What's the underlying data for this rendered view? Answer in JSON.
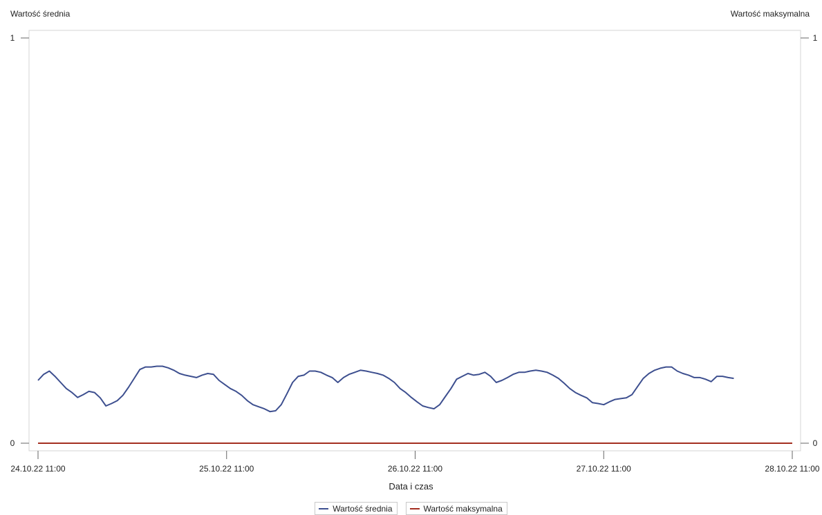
{
  "chart_data": {
    "type": "line",
    "xlabel": "Data i czas",
    "ylabel_left": "Wartość średnia",
    "ylabel_right": "Wartość maksymalna",
    "x_tick_labels": [
      "24.10.22 11:00",
      "25.10.22 11:00",
      "26.10.22 11:00",
      "27.10.22 11:00",
      "28.10.22 11:00"
    ],
    "x_range_days": [
      0,
      4
    ],
    "y_left_ticks": [
      "0",
      "1"
    ],
    "y_right_ticks": [
      "0",
      "1"
    ],
    "ylim": [
      0,
      1
    ],
    "grid": false,
    "legend_position": "bottom",
    "series": [
      {
        "name": "Wartość średnia",
        "color": "#3d4f8f",
        "axis": "left",
        "points": [
          [
            0.0,
            0.155
          ],
          [
            0.03,
            0.17
          ],
          [
            0.06,
            0.178
          ],
          [
            0.09,
            0.165
          ],
          [
            0.12,
            0.15
          ],
          [
            0.15,
            0.135
          ],
          [
            0.18,
            0.125
          ],
          [
            0.21,
            0.113
          ],
          [
            0.24,
            0.12
          ],
          [
            0.27,
            0.128
          ],
          [
            0.3,
            0.125
          ],
          [
            0.33,
            0.112
          ],
          [
            0.36,
            0.092
          ],
          [
            0.39,
            0.098
          ],
          [
            0.42,
            0.105
          ],
          [
            0.45,
            0.118
          ],
          [
            0.48,
            0.138
          ],
          [
            0.51,
            0.16
          ],
          [
            0.54,
            0.182
          ],
          [
            0.57,
            0.188
          ],
          [
            0.6,
            0.188
          ],
          [
            0.63,
            0.19
          ],
          [
            0.66,
            0.19
          ],
          [
            0.69,
            0.186
          ],
          [
            0.72,
            0.18
          ],
          [
            0.75,
            0.172
          ],
          [
            0.78,
            0.168
          ],
          [
            0.81,
            0.165
          ],
          [
            0.84,
            0.162
          ],
          [
            0.87,
            0.168
          ],
          [
            0.9,
            0.172
          ],
          [
            0.93,
            0.17
          ],
          [
            0.96,
            0.155
          ],
          [
            0.99,
            0.145
          ],
          [
            1.02,
            0.135
          ],
          [
            1.05,
            0.128
          ],
          [
            1.08,
            0.118
          ],
          [
            1.11,
            0.105
          ],
          [
            1.14,
            0.095
          ],
          [
            1.17,
            0.09
          ],
          [
            1.2,
            0.085
          ],
          [
            1.23,
            0.078
          ],
          [
            1.26,
            0.08
          ],
          [
            1.29,
            0.095
          ],
          [
            1.32,
            0.122
          ],
          [
            1.35,
            0.15
          ],
          [
            1.38,
            0.165
          ],
          [
            1.41,
            0.168
          ],
          [
            1.44,
            0.178
          ],
          [
            1.47,
            0.178
          ],
          [
            1.5,
            0.175
          ],
          [
            1.53,
            0.168
          ],
          [
            1.56,
            0.162
          ],
          [
            1.59,
            0.15
          ],
          [
            1.62,
            0.162
          ],
          [
            1.65,
            0.17
          ],
          [
            1.68,
            0.175
          ],
          [
            1.71,
            0.18
          ],
          [
            1.74,
            0.178
          ],
          [
            1.77,
            0.175
          ],
          [
            1.8,
            0.172
          ],
          [
            1.83,
            0.168
          ],
          [
            1.86,
            0.16
          ],
          [
            1.89,
            0.15
          ],
          [
            1.92,
            0.135
          ],
          [
            1.95,
            0.125
          ],
          [
            1.98,
            0.113
          ],
          [
            2.01,
            0.102
          ],
          [
            2.04,
            0.092
          ],
          [
            2.07,
            0.088
          ],
          [
            2.1,
            0.085
          ],
          [
            2.13,
            0.095
          ],
          [
            2.16,
            0.115
          ],
          [
            2.19,
            0.135
          ],
          [
            2.22,
            0.158
          ],
          [
            2.25,
            0.165
          ],
          [
            2.28,
            0.172
          ],
          [
            2.31,
            0.168
          ],
          [
            2.34,
            0.17
          ],
          [
            2.37,
            0.175
          ],
          [
            2.4,
            0.165
          ],
          [
            2.43,
            0.15
          ],
          [
            2.46,
            0.155
          ],
          [
            2.49,
            0.162
          ],
          [
            2.52,
            0.17
          ],
          [
            2.55,
            0.175
          ],
          [
            2.58,
            0.175
          ],
          [
            2.61,
            0.178
          ],
          [
            2.64,
            0.18
          ],
          [
            2.67,
            0.178
          ],
          [
            2.7,
            0.175
          ],
          [
            2.73,
            0.168
          ],
          [
            2.76,
            0.16
          ],
          [
            2.79,
            0.148
          ],
          [
            2.82,
            0.135
          ],
          [
            2.85,
            0.125
          ],
          [
            2.88,
            0.118
          ],
          [
            2.91,
            0.112
          ],
          [
            2.94,
            0.1
          ],
          [
            2.97,
            0.098
          ],
          [
            3.0,
            0.095
          ],
          [
            3.03,
            0.102
          ],
          [
            3.06,
            0.108
          ],
          [
            3.09,
            0.11
          ],
          [
            3.12,
            0.112
          ],
          [
            3.15,
            0.12
          ],
          [
            3.18,
            0.14
          ],
          [
            3.21,
            0.16
          ],
          [
            3.24,
            0.172
          ],
          [
            3.27,
            0.18
          ],
          [
            3.3,
            0.185
          ],
          [
            3.33,
            0.188
          ],
          [
            3.36,
            0.188
          ],
          [
            3.39,
            0.178
          ],
          [
            3.42,
            0.172
          ],
          [
            3.45,
            0.168
          ],
          [
            3.48,
            0.162
          ],
          [
            3.51,
            0.162
          ],
          [
            3.54,
            0.158
          ],
          [
            3.57,
            0.152
          ],
          [
            3.6,
            0.165
          ],
          [
            3.63,
            0.165
          ],
          [
            3.66,
            0.162
          ],
          [
            3.69,
            0.16
          ]
        ]
      },
      {
        "name": "Wartość maksymalna",
        "color": "#a32d1f",
        "axis": "right",
        "points": [
          [
            0.0,
            0
          ],
          [
            4.0,
            0
          ]
        ]
      }
    ]
  }
}
